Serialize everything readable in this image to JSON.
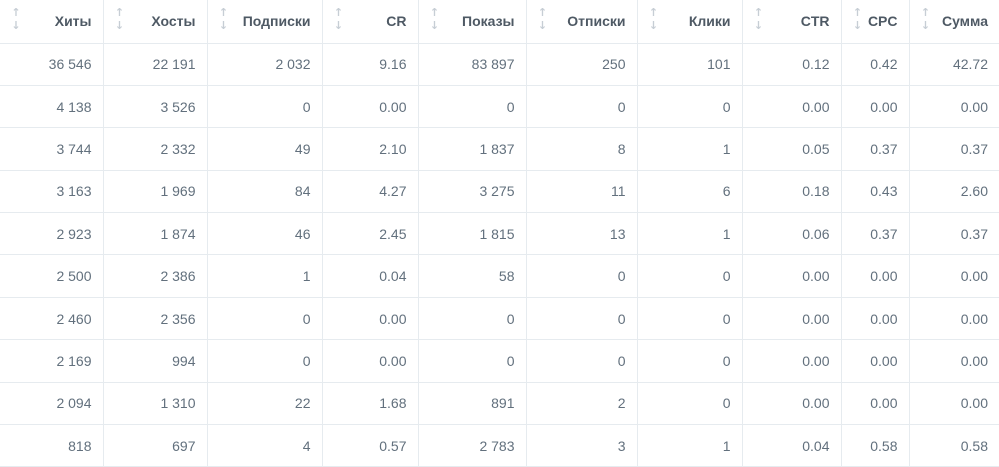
{
  "table": {
    "columns": [
      {
        "label": "Хиты",
        "up_icon": "↑",
        "down_icon": "↓"
      },
      {
        "label": "Хосты",
        "up_icon": "↑",
        "down_icon": "↓"
      },
      {
        "label": "Подписки",
        "up_icon": "↑",
        "down_icon": "↓"
      },
      {
        "label": "CR",
        "up_icon": "↑",
        "down_icon": "↓"
      },
      {
        "label": "Показы",
        "up_icon": "↑",
        "down_icon": "↓"
      },
      {
        "label": "Отписки",
        "up_icon": "↑",
        "down_icon": "↓"
      },
      {
        "label": "Клики",
        "up_icon": "↑",
        "down_icon": "↓"
      },
      {
        "label": "CTR",
        "up_icon": "↑",
        "down_icon": "↓"
      },
      {
        "label": "CPC",
        "up_icon": "↑",
        "down_icon": "↓"
      },
      {
        "label": "Сумма",
        "up_icon": "↑",
        "down_icon": "↓"
      }
    ],
    "rows": [
      [
        "36 546",
        "22 191",
        "2 032",
        "9.16",
        "83 897",
        "250",
        "101",
        "0.12",
        "0.42",
        "42.72"
      ],
      [
        "4 138",
        "3 526",
        "0",
        "0.00",
        "0",
        "0",
        "0",
        "0.00",
        "0.00",
        "0.00"
      ],
      [
        "3 744",
        "2 332",
        "49",
        "2.10",
        "1 837",
        "8",
        "1",
        "0.05",
        "0.37",
        "0.37"
      ],
      [
        "3 163",
        "1 969",
        "84",
        "4.27",
        "3 275",
        "11",
        "6",
        "0.18",
        "0.43",
        "2.60"
      ],
      [
        "2 923",
        "1 874",
        "46",
        "2.45",
        "1 815",
        "13",
        "1",
        "0.06",
        "0.37",
        "0.37"
      ],
      [
        "2 500",
        "2 386",
        "1",
        "0.04",
        "58",
        "0",
        "0",
        "0.00",
        "0.00",
        "0.00"
      ],
      [
        "2 460",
        "2 356",
        "0",
        "0.00",
        "0",
        "0",
        "0",
        "0.00",
        "0.00",
        "0.00"
      ],
      [
        "2 169",
        "994",
        "0",
        "0.00",
        "0",
        "0",
        "0",
        "0.00",
        "0.00",
        "0.00"
      ],
      [
        "2 094",
        "1 310",
        "22",
        "1.68",
        "891",
        "2",
        "0",
        "0.00",
        "0.00",
        "0.00"
      ],
      [
        "818",
        "697",
        "4",
        "0.57",
        "2 783",
        "3",
        "1",
        "0.04",
        "0.58",
        "0.58"
      ]
    ]
  }
}
